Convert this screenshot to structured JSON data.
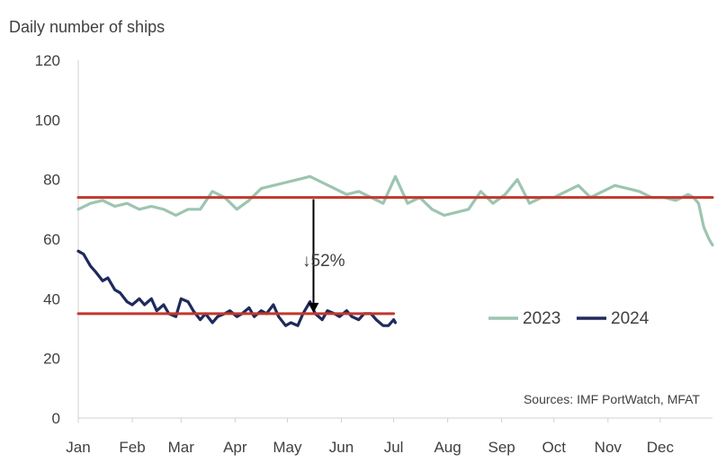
{
  "chart_data": {
    "type": "line",
    "ylabel": "Daily  number of ships",
    "ylim": [
      0,
      120
    ],
    "yticks": [
      0,
      20,
      40,
      60,
      80,
      100,
      120
    ],
    "xlim": [
      1,
      365
    ],
    "months": [
      "Jan",
      "Feb",
      "Mar",
      "Apr",
      "May",
      "Jun",
      "Jul",
      "Aug",
      "Sep",
      "Oct",
      "Nov",
      "Dec"
    ],
    "month_start_days": [
      1,
      32,
      60,
      91,
      121,
      152,
      182,
      213,
      244,
      274,
      305,
      335
    ],
    "grid": false,
    "legend_position": "right-middle",
    "colors": {
      "2023": "#9cc5b0",
      "2024": "#1f2a5c",
      "average": "#c0392b",
      "axis": "#d0d0d0",
      "text": "#404040"
    },
    "series": [
      {
        "name": "2023",
        "x": [
          1,
          8,
          15,
          22,
          29,
          36,
          43,
          50,
          57,
          64,
          71,
          78,
          85,
          92,
          99,
          106,
          113,
          120,
          127,
          134,
          141,
          148,
          155,
          162,
          169,
          176,
          183,
          190,
          197,
          204,
          211,
          218,
          225,
          232,
          239,
          246,
          253,
          260,
          267,
          274,
          281,
          288,
          295,
          302,
          309,
          316,
          323,
          330,
          337,
          344,
          351,
          354,
          357,
          360,
          363,
          365
        ],
        "values": [
          70,
          72,
          73,
          71,
          72,
          70,
          71,
          70,
          68,
          70,
          70,
          76,
          74,
          70,
          73,
          77,
          78,
          79,
          80,
          81,
          79,
          77,
          75,
          76,
          74,
          72,
          81,
          72,
          74,
          70,
          68,
          69,
          70,
          76,
          72,
          75,
          80,
          72,
          74,
          74,
          76,
          78,
          74,
          76,
          78,
          77,
          76,
          74,
          74,
          73,
          75,
          74,
          72,
          64,
          60,
          58
        ]
      },
      {
        "name": "2024",
        "x": [
          1,
          4,
          8,
          11,
          15,
          18,
          22,
          25,
          29,
          32,
          36,
          39,
          43,
          46,
          50,
          53,
          57,
          60,
          64,
          67,
          71,
          74,
          78,
          81,
          85,
          88,
          92,
          95,
          99,
          102,
          106,
          109,
          113,
          116,
          120,
          123,
          127,
          130,
          134,
          137,
          141,
          144,
          148,
          151,
          155,
          158,
          162,
          165,
          169,
          172,
          176,
          179,
          182,
          183
        ],
        "values": [
          56,
          55,
          51,
          49,
          46,
          47,
          43,
          42,
          39,
          38,
          40,
          38,
          40,
          36,
          38,
          35,
          34,
          40,
          39,
          36,
          33,
          35,
          32,
          34,
          35,
          36,
          34,
          35,
          37,
          34,
          36,
          35,
          38,
          34,
          31,
          32,
          31,
          35,
          39,
          35,
          33,
          36,
          35,
          34,
          36,
          34,
          33,
          35,
          35,
          33,
          31,
          31,
          33,
          32
        ]
      },
      {
        "name": "",
        "style": "average-2023",
        "x": [
          1,
          365
        ],
        "values": [
          74,
          74
        ]
      },
      {
        "name": "",
        "style": "average-2024",
        "x": [
          1,
          182
        ],
        "values": [
          35,
          35
        ]
      }
    ],
    "annotations": [
      {
        "text": "↓52%",
        "arrow_x_day": 136,
        "arrow_from": 74,
        "arrow_to": 35
      },
      {
        "text": "Sources: IMF PortWatch, MFAT"
      }
    ]
  }
}
